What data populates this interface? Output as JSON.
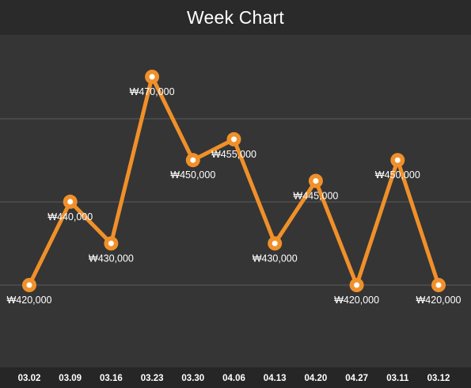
{
  "header": {
    "title": "Week Chart"
  },
  "colors": {
    "line": "#f0902a",
    "point_fill": "#f0902a",
    "point_center": "#ffffff",
    "label": "#ffffff",
    "grid": "#5a5a5a",
    "background": "#353535"
  },
  "chart_data": {
    "type": "line",
    "title": "Week Chart",
    "categories": [
      "03.02",
      "03.09",
      "03.16",
      "03.23",
      "03.30",
      "04.06",
      "04.13",
      "04.20",
      "04.27",
      "03.11",
      "03.12"
    ],
    "values": [
      420000,
      440000,
      430000,
      470000,
      450000,
      455000,
      430000,
      445000,
      420000,
      450000,
      420000
    ],
    "data_labels": [
      "₩420,000",
      "₩440,000",
      "₩430,000",
      "₩470,000",
      "₩450,000",
      "₩455,000",
      "₩430,000",
      "₩445,000",
      "₩420,000",
      "₩450,000",
      "₩420,000"
    ],
    "ylim": [
      400000,
      480000
    ],
    "grid": true,
    "legend": "none"
  }
}
